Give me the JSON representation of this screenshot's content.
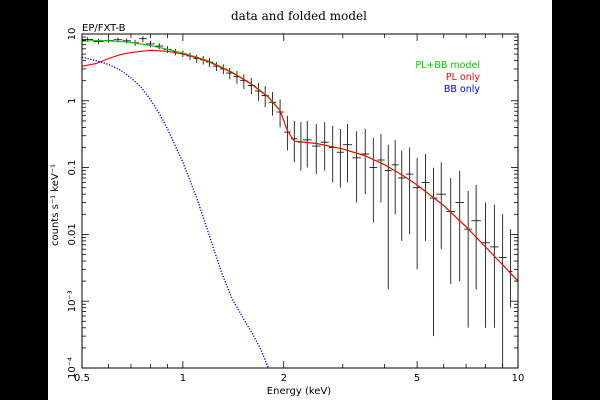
{
  "chart_data": {
    "type": "line",
    "title": "data and folded model",
    "instrument_label": "EP/FXT-B",
    "xlabel": "Energy (keV)",
    "ylabel": "counts s⁻¹ keV⁻¹",
    "xscale": "log",
    "yscale": "log",
    "xlim": [
      0.5,
      10
    ],
    "ylim": [
      0.0001,
      10
    ],
    "grid": false,
    "legend_placement": "top-right",
    "x_ticks": [
      {
        "value": 0.5,
        "label": "0.5"
      },
      {
        "value": 1,
        "label": "1"
      },
      {
        "value": 2,
        "label": "2"
      },
      {
        "value": 5,
        "label": "5"
      },
      {
        "value": 10,
        "label": "10"
      }
    ],
    "y_ticks": [
      {
        "value": 10,
        "label": "10"
      },
      {
        "value": 1,
        "label": "1"
      },
      {
        "value": 0.1,
        "label": "0.1"
      },
      {
        "value": 0.01,
        "label": "0.01"
      },
      {
        "value": 0.001,
        "label": "10⁻³"
      },
      {
        "value": 0.0001,
        "label": "10⁻⁴"
      }
    ],
    "series": [
      {
        "name": "PL+BB model",
        "color": "#00cc00",
        "style": "line",
        "x": [
          0.5,
          0.55,
          0.6,
          0.7,
          0.8,
          0.9,
          1.0,
          1.1,
          1.2,
          1.4,
          1.6,
          1.8,
          1.95,
          2.05,
          2.15,
          2.3,
          2.5,
          3.0,
          3.5,
          4.0,
          4.5,
          5.0,
          6.0,
          7.0,
          8.0,
          9.0,
          10.0
        ],
        "y": [
          7.8,
          8.0,
          7.9,
          7.5,
          6.7,
          5.9,
          5.2,
          4.5,
          3.9,
          2.7,
          1.8,
          1.15,
          0.72,
          0.36,
          0.25,
          0.24,
          0.23,
          0.19,
          0.15,
          0.11,
          0.078,
          0.055,
          0.027,
          0.013,
          0.0065,
          0.0035,
          0.002
        ]
      },
      {
        "name": "PL only",
        "color": "#ff0000",
        "style": "line",
        "x": [
          0.5,
          0.55,
          0.6,
          0.65,
          0.7,
          0.8,
          0.9,
          1.0,
          1.1,
          1.2,
          1.4,
          1.6,
          1.8,
          1.95,
          2.05,
          2.15,
          2.3,
          2.5,
          3.0,
          3.5,
          4.0,
          4.5,
          5.0,
          6.0,
          7.0,
          8.0,
          9.0,
          10.0
        ],
        "y": [
          3.3,
          3.6,
          4.3,
          4.9,
          5.3,
          5.7,
          5.5,
          5.0,
          4.4,
          3.8,
          2.65,
          1.78,
          1.13,
          0.71,
          0.355,
          0.25,
          0.24,
          0.23,
          0.19,
          0.15,
          0.11,
          0.078,
          0.055,
          0.027,
          0.013,
          0.0065,
          0.0035,
          0.002
        ]
      },
      {
        "name": "BB only",
        "color": "#0000ff",
        "style": "dotted",
        "x": [
          0.5,
          0.55,
          0.6,
          0.65,
          0.7,
          0.75,
          0.8,
          0.85,
          0.9,
          1.0,
          1.1,
          1.2,
          1.3,
          1.4,
          1.5,
          1.6,
          1.7,
          1.8
        ],
        "y": [
          4.5,
          4.0,
          3.5,
          2.9,
          2.2,
          1.6,
          1.05,
          0.65,
          0.38,
          0.12,
          0.035,
          0.0095,
          0.0028,
          0.0011,
          0.0006,
          0.00035,
          0.0002,
          0.0001
        ]
      }
    ],
    "data_points": {
      "color": "#000000",
      "x": [
        0.52,
        0.56,
        0.6,
        0.64,
        0.68,
        0.72,
        0.76,
        0.8,
        0.85,
        0.9,
        0.95,
        1.0,
        1.05,
        1.1,
        1.15,
        1.2,
        1.26,
        1.32,
        1.38,
        1.45,
        1.52,
        1.6,
        1.68,
        1.76,
        1.85,
        1.95,
        2.05,
        2.15,
        2.25,
        2.35,
        2.5,
        2.65,
        2.8,
        2.95,
        3.1,
        3.3,
        3.5,
        3.7,
        3.9,
        4.1,
        4.3,
        4.5,
        4.75,
        5.0,
        5.3,
        5.6,
        5.9,
        6.3,
        6.7,
        7.1,
        7.5,
        8.0,
        8.5,
        9.0,
        9.5
      ],
      "y": [
        8.3,
        7.7,
        8.0,
        8.2,
        7.9,
        7.4,
        8.5,
        7.1,
        6.6,
        5.9,
        5.4,
        5.1,
        4.7,
        4.3,
        4.1,
        3.8,
        3.3,
        3.0,
        2.6,
        2.3,
        2.0,
        1.7,
        1.4,
        1.2,
        0.95,
        0.68,
        0.34,
        0.27,
        0.24,
        0.26,
        0.21,
        0.24,
        0.2,
        0.17,
        0.22,
        0.14,
        0.16,
        0.1,
        0.13,
        0.09,
        0.11,
        0.07,
        0.08,
        0.05,
        0.06,
        0.035,
        0.04,
        0.022,
        0.03,
        0.012,
        0.016,
        0.0075,
        0.0065,
        0.0045,
        0.0028
      ],
      "err_lo": [
        7.6,
        7.0,
        7.4,
        7.5,
        7.2,
        6.6,
        7.6,
        6.3,
        5.9,
        5.2,
        4.8,
        4.5,
        4.1,
        3.7,
        3.5,
        3.2,
        2.8,
        2.5,
        2.1,
        1.8,
        1.5,
        1.25,
        1.0,
        0.8,
        0.6,
        0.4,
        0.18,
        0.12,
        0.09,
        0.1,
        0.08,
        0.09,
        0.06,
        0.05,
        0.06,
        0.03,
        0.04,
        0.015,
        0.03,
        0.0015,
        0.02,
        0.008,
        0.01,
        0.003,
        0.008,
        0.0003,
        0.006,
        0.0018,
        0.002,
        0.0004,
        0.0015,
        0.0004,
        0.0004,
        0.0001,
        0.0008
      ],
      "err_hi": [
        9.0,
        8.4,
        8.6,
        8.9,
        8.6,
        8.2,
        9.3,
        7.9,
        7.3,
        6.6,
        6.0,
        5.7,
        5.3,
        4.9,
        4.7,
        4.4,
        3.8,
        3.5,
        3.1,
        2.8,
        2.5,
        2.2,
        1.85,
        1.65,
        1.35,
        1.05,
        0.6,
        0.5,
        0.48,
        0.5,
        0.45,
        0.48,
        0.42,
        0.38,
        0.45,
        0.35,
        0.38,
        0.28,
        0.32,
        0.22,
        0.26,
        0.18,
        0.2,
        0.14,
        0.16,
        0.1,
        0.12,
        0.07,
        0.09,
        0.045,
        0.055,
        0.03,
        0.028,
        0.02,
        0.012
      ]
    }
  }
}
